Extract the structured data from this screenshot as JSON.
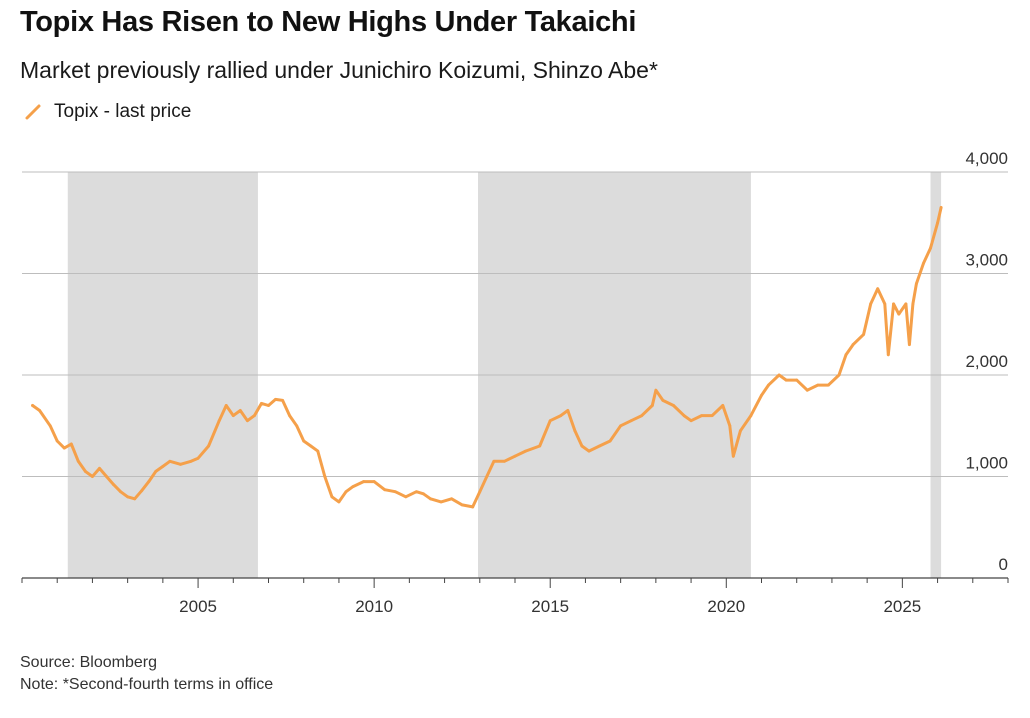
{
  "chart_data": {
    "type": "line",
    "title": "Topix Has Risen to New Highs Under Takaichi",
    "subtitle": "Market previously rallied under Junichiro Koizumi, Shinzo Abe*",
    "legend": [
      {
        "name": "Topix - last price",
        "color": "#f5a04a"
      }
    ],
    "legend_position": "top-left",
    "grid": true,
    "y_axis_side": "right",
    "ylim": [
      0,
      4000
    ],
    "y_ticks": [
      0,
      1000,
      2000,
      3000,
      4000
    ],
    "y_tick_labels": [
      "0",
      "1,000",
      "2,000",
      "3,000",
      "4,000"
    ],
    "xlim": [
      2000.0,
      2028.0
    ],
    "x_ticks": [
      2005,
      2010,
      2015,
      2020,
      2025
    ],
    "x_tick_labels": [
      "2005",
      "2010",
      "2015",
      "2020",
      "2025"
    ],
    "shaded_periods": [
      {
        "start": 2001.3,
        "end": 2006.7
      },
      {
        "start": 2012.95,
        "end": 2020.7
      },
      {
        "start": 2025.8,
        "end": 2026.1
      }
    ],
    "series": [
      {
        "name": "Topix - last price",
        "color": "#f5a04a",
        "x": [
          2000.3,
          2000.5,
          2000.8,
          2001.0,
          2001.2,
          2001.4,
          2001.6,
          2001.8,
          2002.0,
          2002.2,
          2002.4,
          2002.6,
          2002.8,
          2003.0,
          2003.2,
          2003.4,
          2003.6,
          2003.8,
          2004.0,
          2004.2,
          2004.5,
          2004.8,
          2005.0,
          2005.3,
          2005.6,
          2005.8,
          2006.0,
          2006.2,
          2006.4,
          2006.6,
          2006.8,
          2007.0,
          2007.2,
          2007.4,
          2007.6,
          2007.8,
          2008.0,
          2008.2,
          2008.4,
          2008.6,
          2008.8,
          2009.0,
          2009.2,
          2009.4,
          2009.7,
          2010.0,
          2010.3,
          2010.6,
          2010.9,
          2011.2,
          2011.4,
          2011.6,
          2011.9,
          2012.2,
          2012.5,
          2012.8,
          2013.0,
          2013.2,
          2013.4,
          2013.7,
          2014.0,
          2014.3,
          2014.7,
          2015.0,
          2015.3,
          2015.5,
          2015.7,
          2015.9,
          2016.1,
          2016.4,
          2016.7,
          2017.0,
          2017.3,
          2017.6,
          2017.9,
          2018.0,
          2018.2,
          2018.5,
          2018.8,
          2019.0,
          2019.3,
          2019.6,
          2019.9,
          2020.1,
          2020.2,
          2020.4,
          2020.7,
          2021.0,
          2021.2,
          2021.5,
          2021.7,
          2022.0,
          2022.3,
          2022.6,
          2022.9,
          2023.2,
          2023.4,
          2023.6,
          2023.9,
          2024.1,
          2024.3,
          2024.5,
          2024.6,
          2024.75,
          2024.9,
          2025.1,
          2025.2,
          2025.3,
          2025.4,
          2025.6,
          2025.8,
          2026.0,
          2026.1
        ],
        "values": [
          1700,
          1650,
          1500,
          1350,
          1280,
          1320,
          1150,
          1050,
          1000,
          1080,
          1000,
          920,
          850,
          800,
          780,
          860,
          950,
          1050,
          1100,
          1150,
          1120,
          1150,
          1180,
          1300,
          1550,
          1700,
          1600,
          1650,
          1550,
          1600,
          1720,
          1700,
          1760,
          1750,
          1600,
          1500,
          1350,
          1300,
          1250,
          1000,
          800,
          750,
          850,
          900,
          950,
          950,
          870,
          850,
          800,
          850,
          830,
          780,
          750,
          780,
          720,
          700,
          850,
          1000,
          1150,
          1150,
          1200,
          1250,
          1300,
          1550,
          1600,
          1650,
          1450,
          1300,
          1250,
          1300,
          1350,
          1500,
          1550,
          1600,
          1700,
          1850,
          1750,
          1700,
          1600,
          1550,
          1600,
          1600,
          1700,
          1500,
          1200,
          1450,
          1600,
          1800,
          1900,
          2000,
          1950,
          1950,
          1850,
          1900,
          1900,
          2000,
          2200,
          2300,
          2400,
          2700,
          2850,
          2700,
          2200,
          2700,
          2600,
          2700,
          2300,
          2700,
          2900,
          3100,
          3250,
          3500,
          3650
        ]
      }
    ]
  },
  "footer": {
    "source": "Source: Bloomberg",
    "note": "Note: *Second-fourth terms in office"
  }
}
